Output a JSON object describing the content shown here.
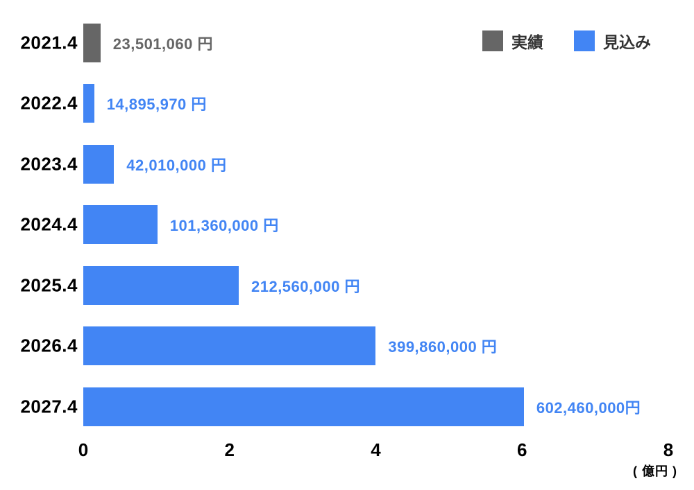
{
  "chart_data": {
    "type": "bar",
    "orientation": "horizontal",
    "title": "",
    "x_axis_unit": "( 億円 )",
    "x_ticks": [
      "0",
      "2",
      "4",
      "6",
      "8"
    ],
    "xlim_yen": [
      0,
      800000000
    ],
    "max_yen": 800000000,
    "legend": [
      {
        "series": "actual",
        "label": "実績",
        "color": "#666666"
      },
      {
        "series": "forecast",
        "label": "見込み",
        "color": "#4285f4"
      }
    ],
    "rows": [
      {
        "category": "2021.4",
        "value_yen": 23501060,
        "label": "23,501,060 円",
        "series": "actual"
      },
      {
        "category": "2022.4",
        "value_yen": 14895970,
        "label": "14,895,970 円",
        "series": "forecast"
      },
      {
        "category": "2023.4",
        "value_yen": 42010000,
        "label": "42,010,000 円",
        "series": "forecast"
      },
      {
        "category": "2024.4",
        "value_yen": 101360000,
        "label": "101,360,000 円",
        "series": "forecast"
      },
      {
        "category": "2025.4",
        "value_yen": 212560000,
        "label": "212,560,000 円",
        "series": "forecast"
      },
      {
        "category": "2026.4",
        "value_yen": 399860000,
        "label": "399,860,000 円",
        "series": "forecast"
      },
      {
        "category": "2027.4",
        "value_yen": 602460000,
        "label": "602,460,000円",
        "series": "forecast"
      }
    ]
  }
}
